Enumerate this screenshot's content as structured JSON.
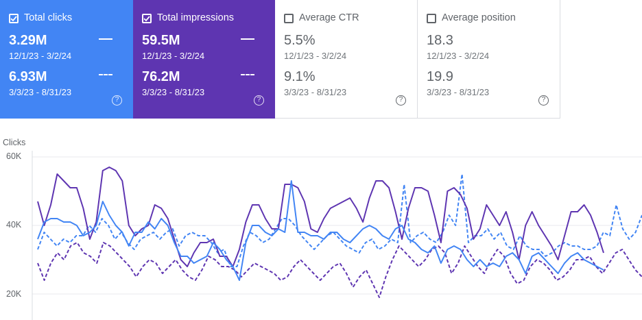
{
  "metrics": [
    {
      "title": "Total clicks",
      "checked": true,
      "current_value": "3.29M",
      "current_range": "12/1/23 - 3/2/24",
      "previous_value": "6.93M",
      "previous_range": "3/3/23 - 8/31/23",
      "color": "#4285f4"
    },
    {
      "title": "Total impressions",
      "checked": true,
      "current_value": "59.5M",
      "current_range": "12/1/23 - 3/2/24",
      "previous_value": "76.2M",
      "previous_range": "3/3/23 - 8/31/23",
      "color": "#5e35b1"
    },
    {
      "title": "Average CTR",
      "checked": false,
      "current_value": "5.5%",
      "current_range": "12/1/23 - 3/2/24",
      "previous_value": "9.1%",
      "previous_range": "3/3/23 - 8/31/23",
      "color": "#ffffff"
    },
    {
      "title": "Average position",
      "checked": false,
      "current_value": "18.3",
      "current_range": "12/1/23 - 3/2/24",
      "previous_value": "19.9",
      "previous_range": "3/3/23 - 8/31/23",
      "color": "#ffffff"
    }
  ],
  "help_glyph": "?",
  "chart_data": {
    "type": "line",
    "ylabel": "Clicks",
    "ylim": [
      20000,
      60000
    ],
    "y_ticks": [
      "60K",
      "40K",
      "20K"
    ],
    "y_tick_values": [
      60000,
      40000,
      20000
    ],
    "grid": true,
    "series": [
      {
        "color": "#5e35b1",
        "dashed": false,
        "values": [
          47000,
          40000,
          46000,
          55000,
          53000,
          51000,
          51000,
          45000,
          36000,
          41000,
          56000,
          57000,
          56000,
          53000,
          40000,
          37000,
          39000,
          40000,
          46000,
          45000,
          42000,
          36000,
          30000,
          28000,
          32000,
          35000,
          35000,
          36000,
          31000,
          31000,
          28000,
          33000,
          41000,
          46000,
          46000,
          42000,
          39000,
          39000,
          52000,
          52000,
          51000,
          47000,
          39000,
          38000,
          42000,
          45000,
          46000,
          47000,
          48000,
          45000,
          41000,
          48000,
          53000,
          53000,
          51000,
          44000,
          36000,
          45000,
          51000,
          51000,
          50000,
          43000,
          35000,
          50000,
          51000,
          49000,
          45000,
          36000,
          39000,
          46000,
          43000,
          40000,
          44000,
          38000,
          30000,
          40000,
          44000,
          40000,
          37000,
          34000,
          30000,
          37000,
          44000,
          44000,
          46000,
          43000,
          38000,
          32000
        ]
      },
      {
        "color": "#4285f4",
        "dashed": false,
        "values": [
          36000,
          41000,
          42000,
          42000,
          41000,
          41000,
          40000,
          37000,
          38000,
          40000,
          47000,
          43000,
          40000,
          38000,
          34000,
          38000,
          38000,
          41000,
          39000,
          42000,
          40000,
          35000,
          31000,
          31000,
          29000,
          30000,
          31000,
          35000,
          33000,
          30000,
          28000,
          24000,
          35000,
          40000,
          40000,
          38000,
          37000,
          39000,
          38000,
          53000,
          38000,
          38000,
          37000,
          37000,
          36000,
          38000,
          38000,
          36000,
          35000,
          37000,
          39000,
          40000,
          39000,
          37000,
          36000,
          39000,
          40000,
          36000,
          35000,
          33000,
          32000,
          34000,
          29000,
          33000,
          34000,
          33000,
          30000,
          28000,
          30000,
          28000,
          29000,
          28000,
          31000,
          32000,
          30000,
          26000,
          31000,
          32000,
          30000,
          28000,
          26000,
          29000,
          31000,
          32000,
          30000,
          29000,
          28000,
          27000
        ]
      },
      {
        "color": "#4285f4",
        "dashed": true,
        "values": [
          33000,
          38000,
          36000,
          34000,
          36000,
          35000,
          37000,
          37000,
          40000,
          38000,
          42000,
          40000,
          36000,
          38000,
          35000,
          33000,
          36000,
          37000,
          38000,
          36000,
          38000,
          39000,
          34000,
          37000,
          38000,
          37000,
          37000,
          35000,
          32000,
          33000,
          28000,
          28000,
          34000,
          38000,
          37000,
          35000,
          36000,
          39000,
          42000,
          42000,
          40000,
          37000,
          35000,
          33000,
          35000,
          37000,
          38000,
          36000,
          34000,
          33000,
          32000,
          35000,
          36000,
          33000,
          34000,
          36000,
          35000,
          52000,
          35000,
          37000,
          38000,
          36000,
          35000,
          38000,
          43000,
          40000,
          55000,
          35000,
          37000,
          37000,
          39000,
          36000,
          38000,
          34000,
          33000,
          37000,
          34000,
          33000,
          33000,
          31000,
          32000,
          34000,
          35000,
          34000,
          34000,
          33000,
          33000,
          34000,
          38000,
          37000,
          46000,
          39000,
          36000,
          38000,
          43000
        ]
      },
      {
        "color": "#5e35b1",
        "dashed": true,
        "values": [
          29000,
          24000,
          29000,
          32000,
          30000,
          34000,
          35000,
          32000,
          31000,
          29000,
          35000,
          34000,
          32000,
          30000,
          28000,
          25000,
          28000,
          30000,
          29000,
          26000,
          28000,
          30000,
          27000,
          25000,
          24000,
          27000,
          31000,
          30000,
          28000,
          28000,
          27000,
          25000,
          27000,
          29000,
          28000,
          27000,
          26000,
          24000,
          25000,
          28000,
          30000,
          28000,
          26000,
          24000,
          26000,
          28000,
          29000,
          26000,
          22000,
          25000,
          27000,
          23000,
          19000,
          25000,
          30000,
          34000,
          32000,
          30000,
          28000,
          30000,
          33000,
          34000,
          32000,
          26000,
          29000,
          34000,
          31000,
          28000,
          26000,
          30000,
          33000,
          31000,
          26000,
          23000,
          24000,
          28000,
          30000,
          29000,
          27000,
          24000,
          25000,
          27000,
          30000,
          30000,
          31000,
          28000,
          26000,
          29000,
          32000,
          33000,
          30000,
          27000,
          25000
        ]
      }
    ]
  }
}
